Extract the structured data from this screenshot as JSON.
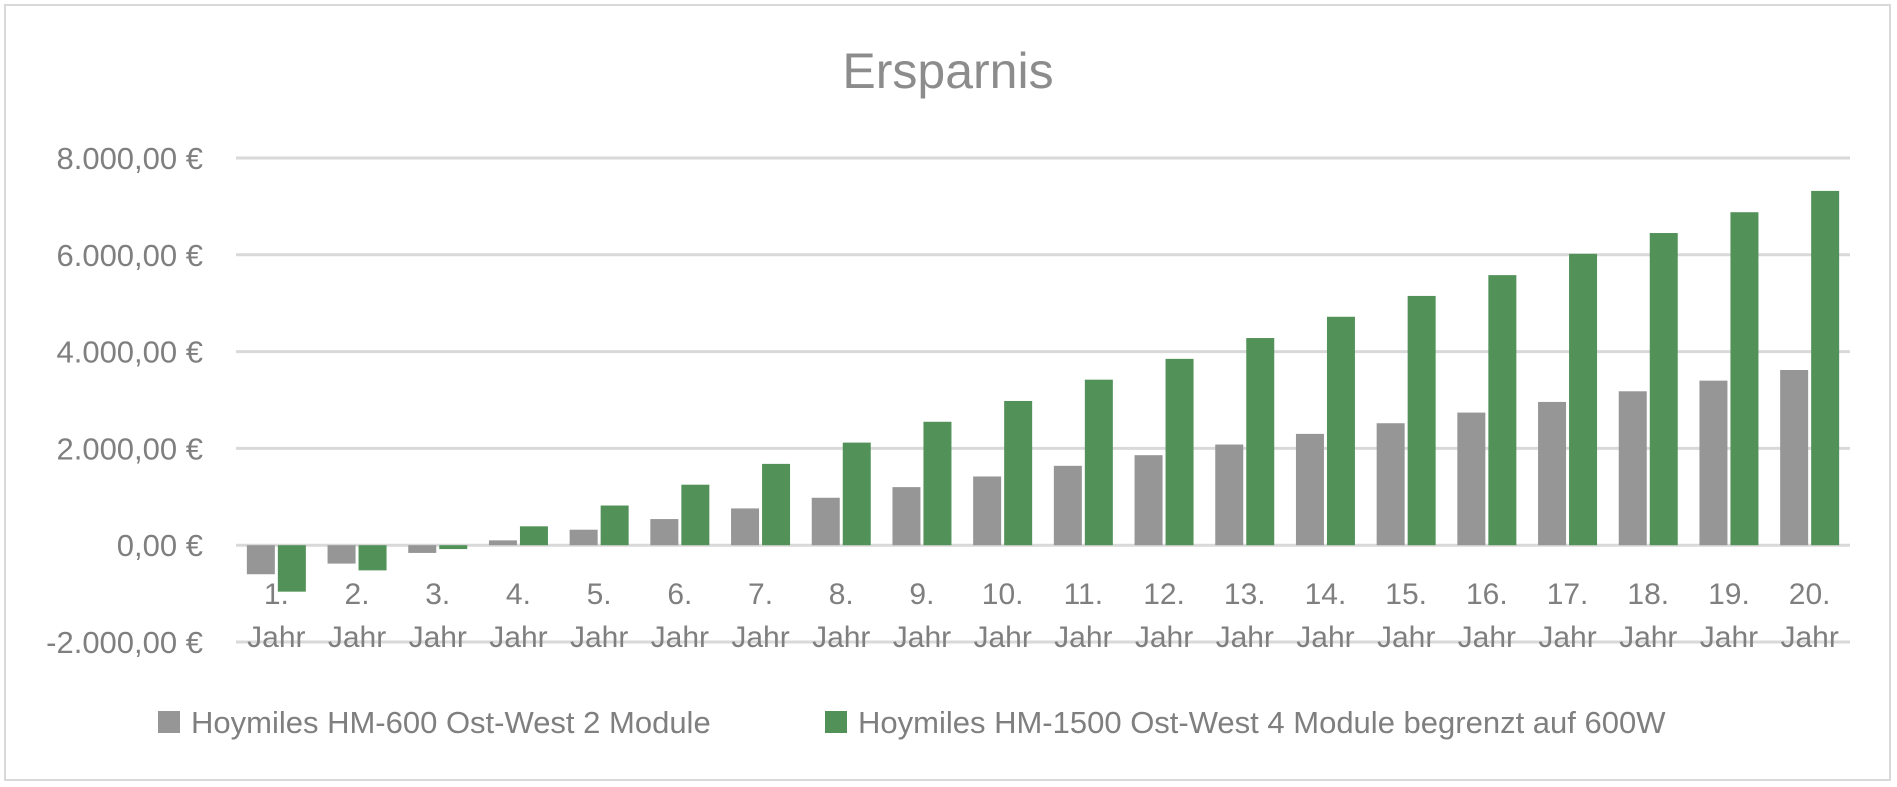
{
  "chart_data": {
    "type": "bar",
    "title": "Ersparnis",
    "xlabel": "",
    "ylabel": "",
    "ylim": [
      -2000,
      8000
    ],
    "yticks": [
      -2000,
      0,
      2000,
      4000,
      6000,
      8000
    ],
    "ytick_labels": [
      "-2.000,00 €",
      "0,00 €",
      "2.000,00 €",
      "4.000,00 €",
      "6.000,00 €",
      "8.000,00 €"
    ],
    "categories": [
      [
        "1.",
        "Jahr"
      ],
      [
        "2.",
        "Jahr"
      ],
      [
        "3.",
        "Jahr"
      ],
      [
        "4.",
        "Jahr"
      ],
      [
        "5.",
        "Jahr"
      ],
      [
        "6.",
        "Jahr"
      ],
      [
        "7.",
        "Jahr"
      ],
      [
        "8.",
        "Jahr"
      ],
      [
        "9.",
        "Jahr"
      ],
      [
        "10.",
        "Jahr"
      ],
      [
        "11.",
        "Jahr"
      ],
      [
        "12.",
        "Jahr"
      ],
      [
        "13.",
        "Jahr"
      ],
      [
        "14.",
        "Jahr"
      ],
      [
        "15.",
        "Jahr"
      ],
      [
        "16.",
        "Jahr"
      ],
      [
        "17.",
        "Jahr"
      ],
      [
        "18.",
        "Jahr"
      ],
      [
        "19.",
        "Jahr"
      ],
      [
        "20.",
        "Jahr"
      ]
    ],
    "series": [
      {
        "name": "Hoymiles HM-600 Ost-West 2 Module",
        "color": "#969696",
        "values": [
          -600,
          -380,
          -160,
          100,
          320,
          540,
          760,
          980,
          1200,
          1420,
          1640,
          1860,
          2080,
          2300,
          2520,
          2740,
          2960,
          3180,
          3400,
          3620
        ]
      },
      {
        "name": "Hoymiles HM-1500 Ost-West 4 Module begrenzt auf 600W",
        "color": "#529259",
        "values": [
          -960,
          -520,
          -80,
          390,
          820,
          1250,
          1680,
          2120,
          2550,
          2980,
          3420,
          3850,
          4280,
          4720,
          5150,
          5580,
          6020,
          6450,
          6880,
          7320
        ]
      }
    ],
    "grid": true,
    "legend_position": "bottom"
  }
}
